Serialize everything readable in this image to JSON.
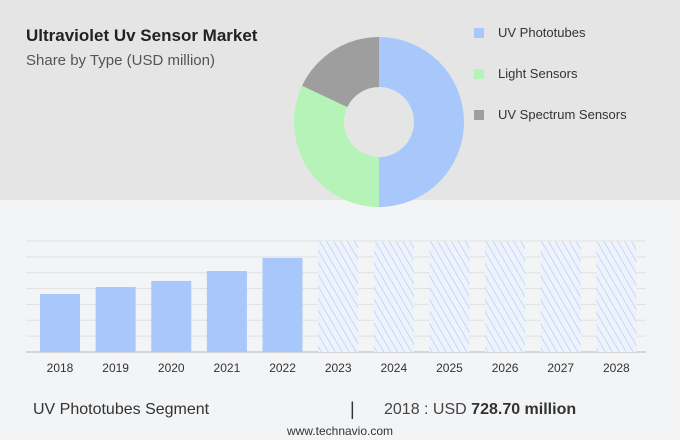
{
  "chart_data": [
    {
      "type": "pie",
      "title": "Ultraviolet Uv Sensor Market",
      "subtitle": "Share by Type (USD million)",
      "labels": [
        "UV Phototubes",
        "Light Sensors",
        "UV Spectrum Sensors"
      ],
      "values": [
        50,
        32,
        18
      ],
      "colors": [
        "#a8c8fb",
        "#b6f3b6",
        "#9e9e9e"
      ],
      "donut": true,
      "legend": "right"
    },
    {
      "type": "bar",
      "categories": [
        "2018",
        "2019",
        "2020",
        "2021",
        "2022",
        "2023",
        "2024",
        "2025",
        "2026",
        "2027",
        "2028"
      ],
      "values": [
        728.7,
        816,
        892,
        1017,
        1181,
        null,
        null,
        null,
        null,
        null,
        null
      ],
      "forecast": [
        "2023",
        "2024",
        "2025",
        "2026",
        "2027",
        "2028"
      ],
      "ylim": [
        0,
        1394
      ],
      "grid": true,
      "color": "#a8c8fb"
    }
  ],
  "footer": {
    "segment": "UV Phototubes Segment",
    "sep": "|",
    "year_label": "2018 : USD",
    "value": "728.70 million",
    "url": "www.technavio.com"
  }
}
